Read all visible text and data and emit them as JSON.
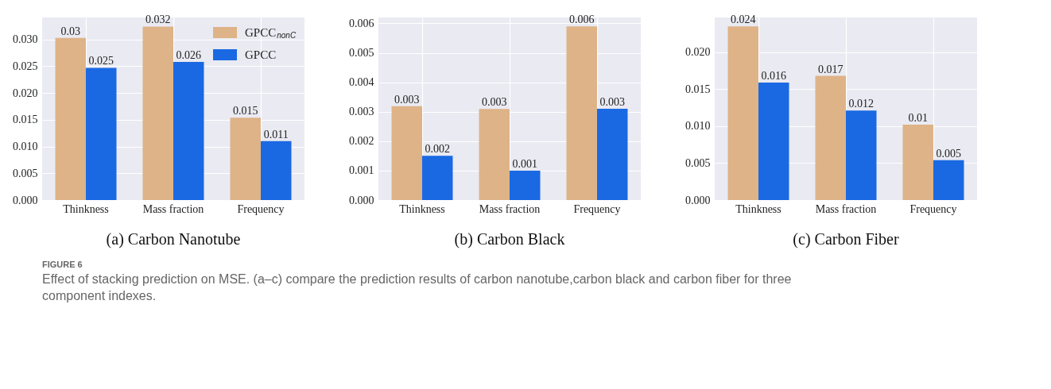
{
  "chart_data": [
    {
      "type": "bar",
      "title": "(a) Carbon Nanotube",
      "categories": [
        "Thinkness",
        "Mass fraction",
        "Frequency"
      ],
      "series": [
        {
          "name": "GPCC$_{nonC}$",
          "color": "#deb387",
          "values": [
            0.0303,
            0.0324,
            0.0154
          ],
          "value_labels": [
            "0.03",
            "0.032",
            "0.015"
          ]
        },
        {
          "name": "GPCC",
          "color": "#1a69e3",
          "values": [
            0.0247,
            0.0258,
            0.011
          ],
          "value_labels": [
            "0.025",
            "0.026",
            "0.011"
          ]
        }
      ],
      "ylim": [
        0,
        0.0341
      ],
      "yticks": [
        {
          "value": 0,
          "label": "0.000"
        },
        {
          "value": 0.005,
          "label": "0.005"
        },
        {
          "value": 0.01,
          "label": "0.010"
        },
        {
          "value": 0.015,
          "label": "0.015"
        },
        {
          "value": 0.02,
          "label": "0.020"
        },
        {
          "value": 0.025,
          "label": "0.025"
        },
        {
          "value": 0.03,
          "label": "0.030"
        }
      ],
      "grid": true,
      "legend": "top right",
      "annotations": [
        "FIGURE 6",
        "Effect of stacking prediction on MSE. (a–c) compare the prediction results of carbon nanotube,carbon black and carbon fiber for three component indexes."
      ]
    },
    {
      "type": "bar",
      "title": "(b) Carbon Black",
      "categories": [
        "Thinkness",
        "Mass fraction",
        "Frequency"
      ],
      "series": [
        {
          "color": "#deb387",
          "values": [
            0.00319,
            0.00309,
            0.0059
          ],
          "value_labels": [
            "0.003",
            "0.003",
            "0.006"
          ]
        },
        {
          "color": "#1a69e3",
          "values": [
            0.0015,
            0.001,
            0.0031
          ],
          "value_labels": [
            "0.002",
            "0.001",
            "0.003"
          ]
        }
      ],
      "ylim": [
        0,
        0.0062
      ],
      "yticks": [
        {
          "value": 0,
          "label": "0.000"
        },
        {
          "value": 0.001,
          "label": "0.001"
        },
        {
          "value": 0.002,
          "label": "0.002"
        },
        {
          "value": 0.003,
          "label": "0.003"
        },
        {
          "value": 0.004,
          "label": "0.004"
        },
        {
          "value": 0.005,
          "label": "0.005"
        },
        {
          "value": 0.006,
          "label": "0.006"
        }
      ],
      "grid": true
    },
    {
      "type": "bar",
      "title": "(c) Carbon Fiber",
      "categories": [
        "Thinkness",
        "Mass fraction",
        "Frequency"
      ],
      "series": [
        {
          "color": "#deb387",
          "values": [
            0.0235,
            0.0168,
            0.0102
          ],
          "value_labels": [
            "0.024",
            "0.017",
            "0.01"
          ]
        },
        {
          "color": "#1a69e3",
          "values": [
            0.0159,
            0.0121,
            0.0054
          ],
          "value_labels": [
            "0.016",
            "0.012",
            "0.005"
          ]
        }
      ],
      "ylim": [
        0,
        0.0247
      ],
      "yticks": [
        {
          "value": 0,
          "label": "0.000"
        },
        {
          "value": 0.005,
          "label": "0.005"
        },
        {
          "value": 0.01,
          "label": "0.010"
        },
        {
          "value": 0.015,
          "label": "0.015"
        },
        {
          "value": 0.02,
          "label": "0.020"
        }
      ],
      "grid": true
    }
  ]
}
